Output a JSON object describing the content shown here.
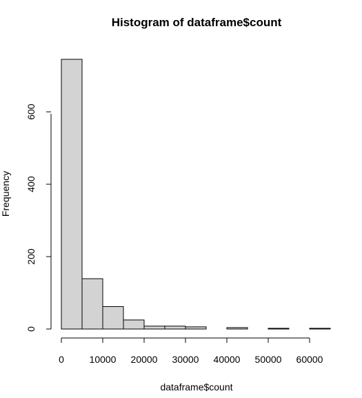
{
  "chart_data": {
    "type": "bar",
    "title": "Histogram of dataframe$count",
    "xlabel": "dataframe$count",
    "ylabel": "Frequency",
    "bin_edges": [
      0,
      5000,
      10000,
      15000,
      20000,
      25000,
      30000,
      35000,
      40000,
      45000,
      50000,
      55000,
      60000,
      65000
    ],
    "values": [
      745,
      139,
      62,
      25,
      8,
      8,
      6,
      0,
      4,
      0,
      2,
      0,
      2
    ],
    "xlim": [
      0,
      65000
    ],
    "ylim": [
      0,
      745
    ],
    "x_ticks": [
      "0",
      "10000",
      "20000",
      "30000",
      "40000",
      "50000",
      "60000"
    ],
    "y_ticks": [
      "0",
      "200",
      "400",
      "600"
    ],
    "grid": false,
    "colors": {
      "bar_fill": "#d3d3d3",
      "bar_stroke": "#000000"
    }
  }
}
